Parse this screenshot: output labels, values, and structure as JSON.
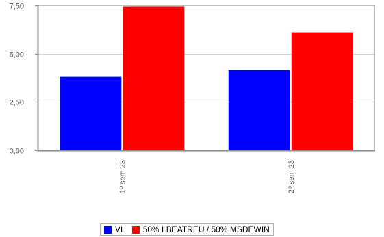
{
  "chart_data": {
    "type": "bar",
    "categories": [
      "1º sem  23",
      "2º sem  23"
    ],
    "series": [
      {
        "name": "VL",
        "color": "#0000ff",
        "values": [
          3.8,
          4.15
        ]
      },
      {
        "name": "50% LBEATREU / 50% MSDEWIN",
        "color": "#ff0000",
        "values": [
          7.45,
          6.1
        ]
      }
    ],
    "y_ticks": [
      "0,00",
      "2,50",
      "5,00",
      "7,50"
    ],
    "y_tick_values": [
      0,
      2.5,
      5,
      7.5
    ],
    "ylim": [
      0,
      7.5
    ],
    "grid": true,
    "legend_position": "bottom"
  }
}
